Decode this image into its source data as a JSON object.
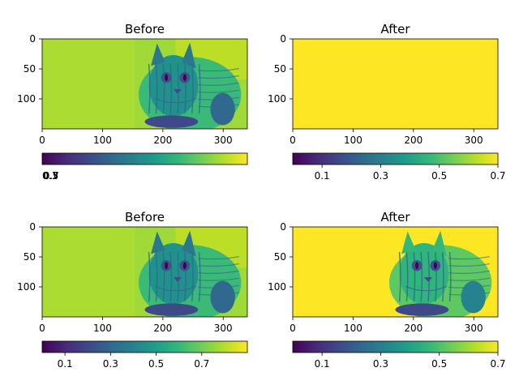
{
  "chart_data": [
    {
      "type": "heatmap",
      "title": "Before",
      "colormap": "viridis",
      "image_size": [
        340,
        150
      ],
      "xlim": [
        0,
        340
      ],
      "ylim": [
        150,
        0
      ],
      "xticks": [
        0,
        100,
        200,
        300
      ],
      "yticks": [
        0,
        50,
        100
      ],
      "content": "cat-photo",
      "colorbar": {
        "orientation": "horizontal",
        "range": [
          0,
          1
        ],
        "ticks": [],
        "tick_labels": [
          "0.1",
          "0.3",
          "0.5",
          "0.7"
        ],
        "tick_labels_overlapping": true
      }
    },
    {
      "type": "heatmap",
      "title": "After",
      "colormap": "viridis",
      "image_size": [
        340,
        150
      ],
      "xlim": [
        0,
        340
      ],
      "ylim": [
        150,
        0
      ],
      "xticks": [
        0,
        100,
        200,
        300
      ],
      "yticks": [
        0,
        50,
        100
      ],
      "content": "uniform-max",
      "colorbar": {
        "orientation": "horizontal",
        "range": [
          0.0,
          0.7
        ],
        "ticks": [
          0.1,
          0.3,
          0.5,
          0.7
        ],
        "tick_labels": [
          "0.1",
          "0.3",
          "0.5",
          "0.7"
        ]
      }
    },
    {
      "type": "heatmap",
      "title": "Before",
      "colormap": "viridis",
      "image_size": [
        340,
        150
      ],
      "xlim": [
        0,
        340
      ],
      "ylim": [
        150,
        0
      ],
      "xticks": [
        0,
        100,
        200,
        300
      ],
      "yticks": [
        0,
        50,
        100
      ],
      "content": "cat-photo",
      "colorbar": {
        "orientation": "horizontal",
        "range": [
          0.0,
          0.9
        ],
        "ticks": [
          0.1,
          0.3,
          0.5,
          0.7
        ],
        "tick_labels": [
          "0.1",
          "0.3",
          "0.5",
          "0.7"
        ]
      }
    },
    {
      "type": "heatmap",
      "title": "After",
      "colormap": "viridis",
      "image_size": [
        340,
        150
      ],
      "xlim": [
        0,
        340
      ],
      "ylim": [
        150,
        0
      ],
      "xticks": [
        0,
        100,
        200,
        300
      ],
      "yticks": [
        0,
        50,
        100
      ],
      "content": "cat-photo-clipped",
      "colorbar": {
        "orientation": "horizontal",
        "range": [
          0.0,
          0.7
        ],
        "ticks": [
          0.1,
          0.3,
          0.5,
          0.7
        ],
        "tick_labels": [
          "0.1",
          "0.3",
          "0.5",
          "0.7"
        ]
      }
    }
  ]
}
